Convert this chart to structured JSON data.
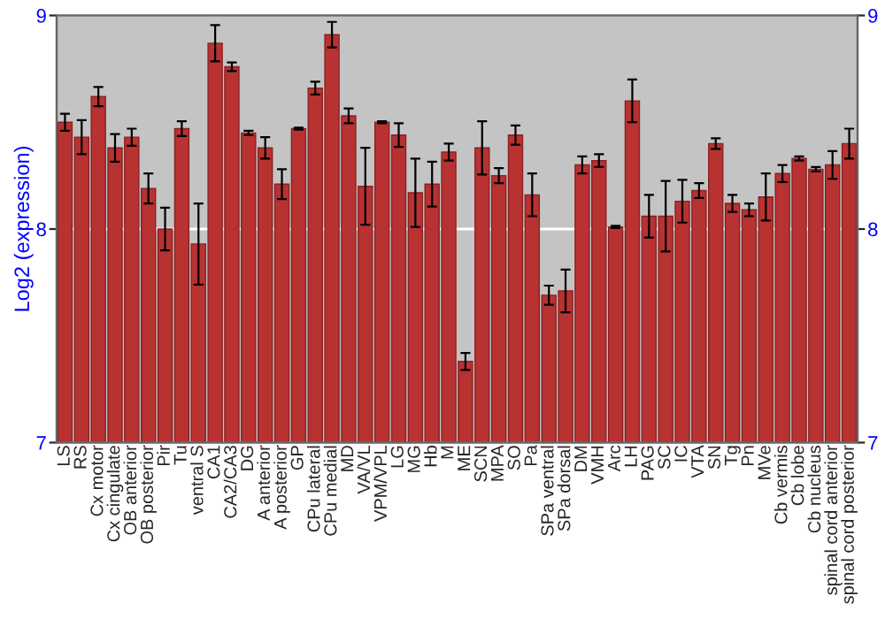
{
  "chart_data": {
    "type": "bar",
    "ylabel": "Log2 (expression)",
    "categories": [
      "LS",
      "RS",
      "Cx motor",
      "Cx cingulate",
      "OB anterior",
      "OB posterior",
      "Pir",
      "Tu",
      "ventral S",
      "CA1",
      "CA2/CA3",
      "DG",
      "A anterior",
      "A posterior",
      "GP",
      "CPu lateral",
      "CPu medial",
      "MD",
      "VA/VL",
      "VPM/VPL",
      "LG",
      "MG",
      "Hb",
      "M",
      "ME",
      "SCN",
      "MPA",
      "SO",
      "Pa",
      "SPa ventral",
      "SPa dorsal",
      "DM",
      "VMH",
      "Arc",
      "LH",
      "PAG",
      "SC",
      "IC",
      "VTA",
      "SN",
      "Tg",
      "Pn",
      "MVe",
      "Cb vermis",
      "Cb lobe",
      "Cb nucleus",
      "spinal cord anterior",
      "spinal cord posterior"
    ],
    "values": [
      8.5,
      8.43,
      8.62,
      8.38,
      8.43,
      8.19,
      8.0,
      8.47,
      7.93,
      8.87,
      8.76,
      8.45,
      8.38,
      8.21,
      8.47,
      8.66,
      8.91,
      8.53,
      8.2,
      8.5,
      8.44,
      8.17,
      8.21,
      8.36,
      7.38,
      8.38,
      8.25,
      8.44,
      8.16,
      7.69,
      7.71,
      8.3,
      8.32,
      8.01,
      8.6,
      8.06,
      8.06,
      8.13,
      8.18,
      8.4,
      8.12,
      8.09,
      8.15,
      8.26,
      8.33,
      8.28,
      8.3,
      8.4
    ],
    "errors": [
      0.04,
      0.08,
      0.045,
      0.065,
      0.04,
      0.07,
      0.1,
      0.035,
      0.19,
      0.085,
      0.02,
      0.01,
      0.05,
      0.07,
      0.005,
      0.03,
      0.06,
      0.035,
      0.18,
      0.005,
      0.055,
      0.16,
      0.105,
      0.04,
      0.04,
      0.125,
      0.035,
      0.045,
      0.1,
      0.045,
      0.1,
      0.04,
      0.03,
      0.005,
      0.1,
      0.1,
      0.165,
      0.1,
      0.035,
      0.025,
      0.04,
      0.03,
      0.11,
      0.04,
      0.01,
      0.01,
      0.065,
      0.07
    ],
    "color": "#b83232",
    "ylim": [
      7,
      9
    ],
    "yticks": [
      7,
      8,
      9
    ],
    "y2lim": [
      7,
      9
    ],
    "y2ticks": [
      7,
      8,
      9
    ],
    "grid": "y"
  }
}
